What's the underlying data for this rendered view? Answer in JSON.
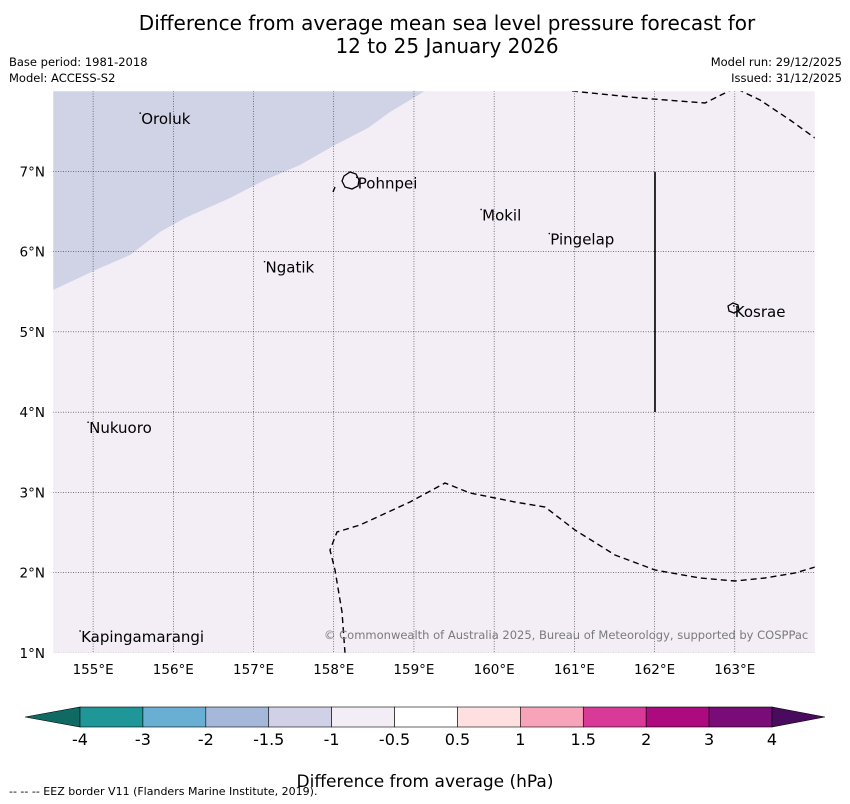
{
  "title": {
    "line1": "Difference from average mean sea level pressure forecast for",
    "line2": "12 to 25 January 2026"
  },
  "meta_left": {
    "base_period": "Base period: 1981-2018",
    "model": "Model: ACCESS-S2"
  },
  "meta_right": {
    "model_run": "Model run: 29/12/2025",
    "issued": "Issued: 31/12/2025"
  },
  "map": {
    "lon_range": [
      154.5,
      164.0
    ],
    "lat_range": [
      1.0,
      8.0
    ],
    "lon_ticks": [
      "155°E",
      "156°E",
      "157°E",
      "158°E",
      "159°E",
      "160°E",
      "161°E",
      "162°E",
      "163°E"
    ],
    "lat_ticks": [
      "1°N",
      "2°N",
      "3°N",
      "4°N",
      "5°N",
      "6°N",
      "7°N"
    ],
    "background_color": "#f3edf6",
    "shaded_color": "#d0d3e5",
    "places": [
      {
        "name": "Oroluk",
        "lon": 155.6,
        "lat": 7.65
      },
      {
        "name": "Pohnpei",
        "lon": 158.3,
        "lat": 6.85
      },
      {
        "name": "Mokil",
        "lon": 159.85,
        "lat": 6.45
      },
      {
        "name": "Pingelap",
        "lon": 160.7,
        "lat": 6.15
      },
      {
        "name": "Ngatik",
        "lon": 157.15,
        "lat": 5.8
      },
      {
        "name": "Kosrae",
        "lon": 163.0,
        "lat": 5.25
      },
      {
        "name": "Nukuoro",
        "lon": 154.95,
        "lat": 3.8
      },
      {
        "name": "Kapingamarangi",
        "lon": 154.85,
        "lat": 1.2
      }
    ],
    "copyright": "© Commonwealth of Australia 2025, Bureau of Meteorology, supported by COSPPac"
  },
  "colorbar": {
    "ticks": [
      "-4",
      "-3",
      "-2",
      "-1.5",
      "-1",
      "-0.5",
      "0.5",
      "1",
      "1.5",
      "2",
      "3",
      "4"
    ],
    "colors": [
      "#0f6a64",
      "#1f9697",
      "#68afd3",
      "#a5b8da",
      "#d0d0e6",
      "#f3edf6",
      "#ffffff",
      "#fde0df",
      "#f7a3b9",
      "#d93a98",
      "#ac0a7e",
      "#7a0c77",
      "#490b5e"
    ],
    "label": "Difference from average (hPa)"
  },
  "footnote": "--  --  -- EEZ border V11 (Flanders Marine Institute, 2019)."
}
